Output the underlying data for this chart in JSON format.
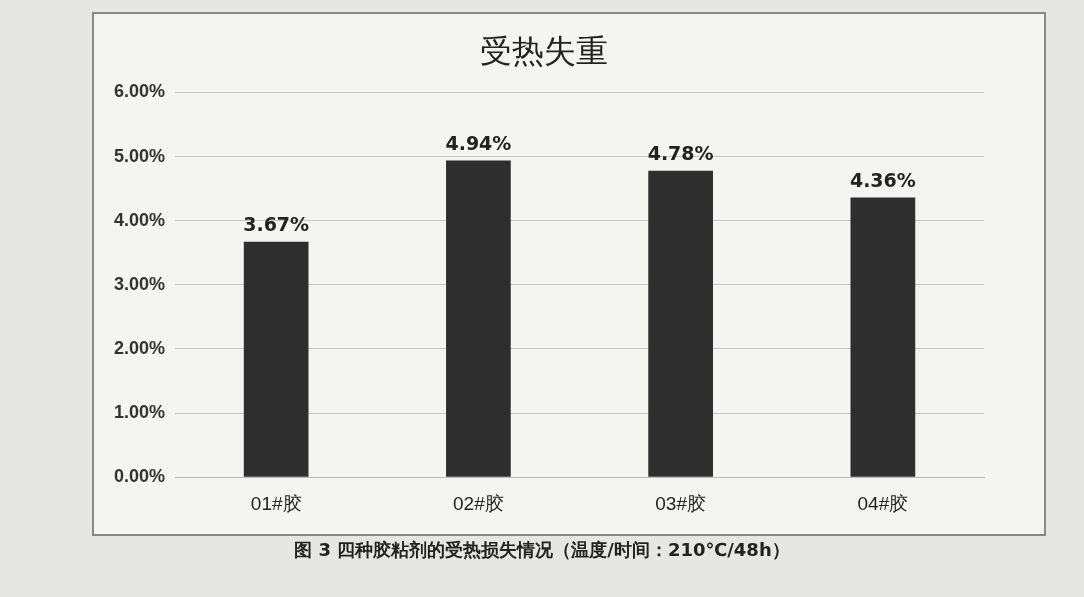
{
  "chart_data": {
    "type": "bar",
    "title": "受热失重",
    "categories": [
      "01#胶",
      "02#胶",
      "03#胶",
      "04#胶"
    ],
    "values": [
      3.67,
      4.94,
      4.78,
      4.36
    ],
    "value_labels": [
      "3.67%",
      "4.94%",
      "4.78%",
      "4.36%"
    ],
    "color": "#2e2e2e",
    "ylim": [
      0,
      6
    ],
    "yticks": [
      {
        "value": 0,
        "label": "0.00%"
      },
      {
        "value": 1,
        "label": "1.00%"
      },
      {
        "value": 2,
        "label": "2.00%"
      },
      {
        "value": 3,
        "label": "3.00%"
      },
      {
        "value": 4,
        "label": "4.00%"
      },
      {
        "value": 5,
        "label": "5.00%"
      },
      {
        "value": 6,
        "label": "6.00%"
      }
    ],
    "grid": "y",
    "annotations": [
      "图 3 四种胶粘剂的受热损失情况（温度/时间：210℃/48h）"
    ]
  }
}
